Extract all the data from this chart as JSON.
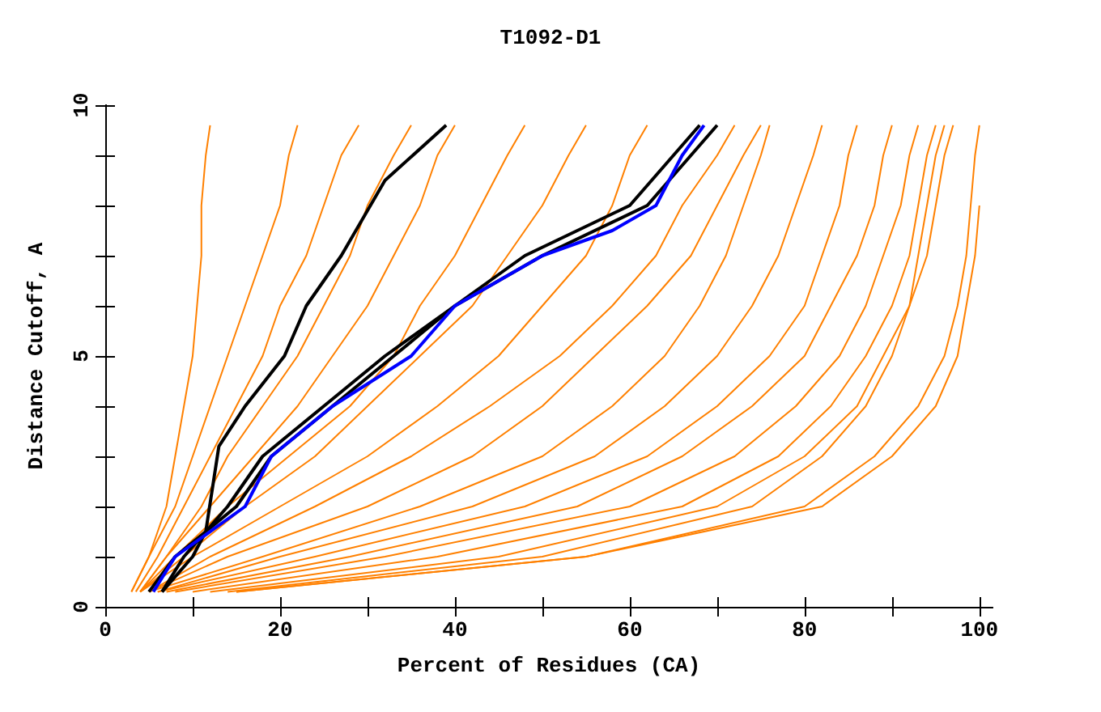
{
  "chart_data": {
    "type": "line",
    "title": "T1092-D1",
    "xlabel": "Percent of Residues (CA)",
    "ylabel": "Distance Cutoff, A",
    "xlim": [
      0,
      101.5
    ],
    "ylim": [
      0,
      10
    ],
    "xticks": [
      0,
      {
        "value": 10,
        "label": null
      },
      20,
      {
        "value": 30,
        "label": null
      },
      40,
      {
        "value": 50,
        "label": null
      },
      60,
      {
        "value": 70,
        "label": null
      },
      80,
      {
        "value": 90,
        "label": null
      },
      100
    ],
    "yticks": [
      0,
      {
        "value": 1,
        "label": null
      },
      {
        "value": 2,
        "label": null
      },
      {
        "value": 3,
        "label": null
      },
      {
        "value": 4,
        "label": null
      },
      5,
      {
        "value": 6,
        "label": null
      },
      {
        "value": 7,
        "label": null
      },
      {
        "value": 8,
        "label": null
      },
      {
        "value": 9,
        "label": null
      },
      10
    ],
    "marker": "none",
    "line_style": "solid",
    "series": [
      {
        "color": "#ff8000",
        "x": [
          3,
          5,
          7,
          8,
          9,
          10,
          10.5,
          11,
          11,
          11.5,
          12
        ],
        "values": [
          0.3,
          1,
          2,
          3,
          4,
          5,
          6,
          7,
          8,
          9,
          9.6
        ]
      },
      {
        "color": "#ff8000",
        "x": [
          3,
          5,
          8,
          10,
          12,
          14,
          16,
          18,
          20,
          21,
          22
        ],
        "values": [
          0.3,
          1,
          2,
          3,
          4,
          5,
          6,
          7,
          8,
          9,
          9.6
        ]
      },
      {
        "color": "#ff8000",
        "x": [
          3.5,
          6,
          9,
          12,
          15,
          18,
          20,
          23,
          25,
          27,
          29
        ],
        "values": [
          0.3,
          1,
          2,
          3,
          4,
          5,
          6,
          7,
          8,
          9,
          9.6
        ]
      },
      {
        "color": "#ff8000",
        "x": [
          4,
          7,
          11,
          14,
          18,
          22,
          25,
          28,
          30,
          33,
          35
        ],
        "values": [
          0.3,
          1,
          2,
          3,
          4,
          5,
          6,
          7,
          8,
          9,
          9.6
        ]
      },
      {
        "color": "#ff8000",
        "x": [
          4,
          7,
          12,
          17,
          22,
          26,
          30,
          33,
          36,
          38,
          40
        ],
        "values": [
          0.3,
          1,
          2,
          3,
          4,
          5,
          6,
          7,
          8,
          9,
          9.6
        ]
      },
      {
        "color": "#ff8000",
        "x": [
          4,
          8,
          14,
          21,
          28,
          33,
          36,
          40,
          43,
          46,
          48
        ],
        "values": [
          0.3,
          1,
          2,
          3,
          4,
          5,
          6,
          7,
          8,
          9,
          9.6
        ]
      },
      {
        "color": "#ff8000",
        "x": [
          4,
          9,
          16,
          24,
          30,
          36,
          42,
          46,
          50,
          53,
          55
        ],
        "values": [
          0.3,
          1,
          2,
          3,
          4,
          5,
          6,
          7,
          8,
          9,
          9.6
        ]
      },
      {
        "color": "#ff8000",
        "x": [
          4,
          10,
          20,
          30,
          38,
          45,
          50,
          55,
          58,
          60,
          62
        ],
        "values": [
          0.3,
          1,
          2,
          3,
          4,
          5,
          6,
          7,
          8,
          9,
          9.6
        ]
      },
      {
        "color": "#ff8000",
        "x": [
          5,
          12,
          24,
          35,
          44,
          52,
          58,
          63,
          66,
          70,
          72
        ],
        "values": [
          0.3,
          1,
          2,
          3,
          4,
          5,
          6,
          7,
          8,
          9,
          9.6
        ]
      },
      {
        "color": "#ff8000",
        "x": [
          5,
          14,
          30,
          42,
          50,
          56,
          62,
          67,
          70,
          73,
          75
        ],
        "values": [
          0.3,
          1,
          2,
          3,
          4,
          5,
          6,
          7,
          8,
          9,
          9.6
        ]
      },
      {
        "color": "#ff8000",
        "x": [
          5,
          18,
          36,
          50,
          58,
          64,
          68,
          71,
          73,
          75,
          76
        ],
        "values": [
          0.3,
          1,
          2,
          3,
          4,
          5,
          6,
          7,
          8,
          9,
          9.6
        ]
      },
      {
        "color": "#ff8000",
        "x": [
          6,
          20,
          42,
          56,
          64,
          70,
          74,
          77,
          79,
          81,
          82
        ],
        "values": [
          0.3,
          1,
          2,
          3,
          4,
          5,
          6,
          7,
          8,
          9,
          9.6
        ]
      },
      {
        "color": "#ff8000",
        "x": [
          6,
          24,
          48,
          62,
          70,
          76,
          80,
          82,
          84,
          85,
          86
        ],
        "values": [
          0.3,
          1,
          2,
          3,
          4,
          5,
          6,
          7,
          8,
          9,
          9.6
        ]
      },
      {
        "color": "#ff8000",
        "x": [
          7,
          28,
          54,
          66,
          74,
          80,
          83,
          86,
          88,
          89,
          90
        ],
        "values": [
          0.3,
          1,
          2,
          3,
          4,
          5,
          6,
          7,
          8,
          9,
          9.6
        ]
      },
      {
        "color": "#ff8000",
        "x": [
          8,
          32,
          60,
          72,
          79,
          84,
          87,
          89,
          91,
          92,
          93
        ],
        "values": [
          0.3,
          1,
          2,
          3,
          4,
          5,
          6,
          7,
          8,
          9,
          9.6
        ]
      },
      {
        "color": "#ff8000",
        "x": [
          10,
          38,
          66,
          77,
          83,
          87,
          90,
          92,
          93,
          94,
          95
        ],
        "values": [
          0.3,
          1,
          2,
          3,
          4,
          5,
          6,
          7,
          8,
          9,
          9.6
        ]
      },
      {
        "color": "#ff8000",
        "x": [
          12,
          45,
          70,
          80,
          86,
          89,
          92,
          93,
          94,
          95,
          96
        ],
        "values": [
          0.3,
          1,
          2,
          3,
          4,
          5,
          6,
          7,
          8,
          9,
          9.6
        ]
      },
      {
        "color": "#ff8000",
        "x": [
          14,
          50,
          74,
          82,
          87,
          90,
          92,
          94,
          95,
          96,
          97
        ],
        "values": [
          0.3,
          1,
          2,
          3,
          4,
          5,
          6,
          7,
          8,
          9,
          9.6
        ]
      },
      {
        "color": "#ff8000",
        "x": [
          15,
          55,
          82,
          90,
          95,
          97.5,
          98.5,
          99.5,
          100
        ],
        "values": [
          0.3,
          1,
          2,
          3,
          4,
          5,
          6,
          7,
          8
        ]
      },
      {
        "color": "#ff8000",
        "x": [
          15,
          55,
          80,
          88,
          93,
          96,
          97.5,
          98.5,
          99,
          99.5,
          100
        ],
        "values": [
          0.3,
          1,
          2,
          3,
          4,
          5,
          6,
          7,
          8,
          9,
          9.6
        ]
      },
      {
        "color": "#000000",
        "x": [
          6.5,
          10,
          11.5,
          13,
          16,
          20.5,
          23,
          27,
          32,
          39
        ],
        "values": [
          0.3,
          1,
          1.5,
          3.2,
          4,
          5,
          6,
          7,
          8.5,
          9.6
        ]
      },
      {
        "color": "#000000",
        "x": [
          6.5,
          9,
          14,
          18,
          25,
          32,
          40,
          50,
          62,
          67,
          70
        ],
        "values": [
          0.3,
          1,
          2,
          3,
          4,
          5,
          6,
          7,
          8,
          9,
          9.6
        ]
      },
      {
        "color": "#000000",
        "x": [
          5,
          8,
          15,
          19,
          26,
          33,
          40,
          48,
          60,
          65,
          68
        ],
        "values": [
          0.3,
          1,
          2,
          3,
          4,
          5,
          6,
          7,
          8,
          9,
          9.6
        ]
      },
      {
        "color": "#0000ff",
        "x": [
          5.5,
          8,
          16,
          19,
          26,
          35,
          40,
          50,
          58,
          63,
          66,
          68.5
        ],
        "values": [
          0.3,
          1,
          2,
          3,
          4,
          5,
          6,
          7,
          7.5,
          8,
          9,
          9.6
        ]
      }
    ]
  }
}
